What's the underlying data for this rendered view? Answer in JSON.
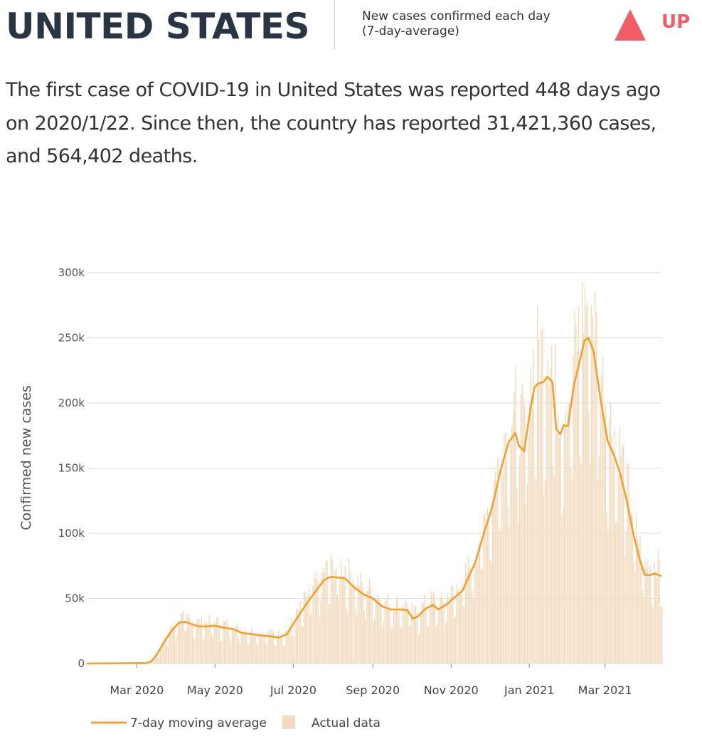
{
  "header": {
    "country": "UNITED STATES",
    "caption_line1": "New cases confirmed each day",
    "caption_line2": "(7-day-average)",
    "trend_label": "UP",
    "trend_icon": "triangle-up-icon",
    "trend_color": "#f25c66"
  },
  "summary": {
    "line1": "The first case of COVID-19 in United States was reported 448 days ago",
    "line2": "on 2020/1/22. Since then, the country has reported 31,421,360 cases,",
    "line3": "and 564,402 deaths."
  },
  "colors": {
    "average_line": "#f5a02a",
    "actual_bars": "#f2dcc0",
    "grid": "#dcdcdc"
  },
  "chart_data": {
    "type": "line",
    "ylabel": "Confirmed new cases",
    "xlabel": "",
    "ylim": [
      0,
      300000
    ],
    "yticks": [
      0,
      50000,
      100000,
      150000,
      200000,
      250000,
      300000
    ],
    "ytick_labels": [
      "0",
      "50k",
      "100k",
      "150k",
      "200k",
      "250k",
      "300k"
    ],
    "xticks": [
      "2020-03-01",
      "2020-05-01",
      "2020-07-01",
      "2020-09-01",
      "2020-11-01",
      "2021-01-01",
      "2021-03-01"
    ],
    "xtick_labels": [
      "Mar 2020",
      "May 2020",
      "Jul 2020",
      "Sep 2020",
      "Nov 2020",
      "Jan 2021",
      "Mar 2021"
    ],
    "xlim": [
      "2020-01-22",
      "2021-04-14"
    ],
    "grid": true,
    "legend_position": "bottom-left",
    "series": [
      {
        "name": "7-day moving average",
        "style": "line",
        "points": [
          [
            "2020-01-22",
            0
          ],
          [
            "2020-02-15",
            200
          ],
          [
            "2020-03-08",
            300
          ],
          [
            "2020-03-12",
            1500
          ],
          [
            "2020-03-16",
            6000
          ],
          [
            "2020-03-22",
            16000
          ],
          [
            "2020-03-28",
            25000
          ],
          [
            "2020-04-03",
            31500
          ],
          [
            "2020-04-08",
            32000
          ],
          [
            "2020-04-12",
            30500
          ],
          [
            "2020-04-18",
            28500
          ],
          [
            "2020-04-25",
            28500
          ],
          [
            "2020-05-01",
            29000
          ],
          [
            "2020-05-08",
            27500
          ],
          [
            "2020-05-15",
            26500
          ],
          [
            "2020-05-22",
            23500
          ],
          [
            "2020-05-30",
            22500
          ],
          [
            "2020-06-06",
            21500
          ],
          [
            "2020-06-12",
            21000
          ],
          [
            "2020-06-20",
            20000
          ],
          [
            "2020-06-26",
            22500
          ],
          [
            "2020-07-02",
            32000
          ],
          [
            "2020-07-10",
            44000
          ],
          [
            "2020-07-18",
            55000
          ],
          [
            "2020-07-25",
            64000
          ],
          [
            "2020-07-30",
            66500
          ],
          [
            "2020-08-05",
            66000
          ],
          [
            "2020-08-10",
            65500
          ],
          [
            "2020-08-18",
            58000
          ],
          [
            "2020-08-25",
            53000
          ],
          [
            "2020-09-01",
            50000
          ],
          [
            "2020-09-08",
            44000
          ],
          [
            "2020-09-15",
            41500
          ],
          [
            "2020-09-22",
            41500
          ],
          [
            "2020-09-28",
            41000
          ],
          [
            "2020-10-02",
            34500
          ],
          [
            "2020-10-06",
            36000
          ],
          [
            "2020-10-12",
            42000
          ],
          [
            "2020-10-18",
            45000
          ],
          [
            "2020-10-22",
            41500
          ],
          [
            "2020-10-28",
            45000
          ],
          [
            "2020-11-04",
            51000
          ],
          [
            "2020-11-10",
            56000
          ],
          [
            "2020-11-14",
            65000
          ],
          [
            "2020-11-20",
            78000
          ],
          [
            "2020-11-26",
            98000
          ],
          [
            "2020-12-03",
            120000
          ],
          [
            "2020-12-10",
            150000
          ],
          [
            "2020-12-16",
            170000
          ],
          [
            "2020-12-21",
            177000
          ],
          [
            "2020-12-24",
            167000
          ],
          [
            "2020-12-28",
            163000
          ],
          [
            "2021-01-01",
            190000
          ],
          [
            "2021-01-05",
            212000
          ],
          [
            "2021-01-08",
            215000
          ],
          [
            "2021-01-12",
            216000
          ],
          [
            "2021-01-15",
            220000
          ],
          [
            "2021-01-19",
            216000
          ],
          [
            "2021-01-22",
            180000
          ],
          [
            "2021-01-25",
            176000
          ],
          [
            "2021-01-28",
            183000
          ],
          [
            "2021-01-31",
            182000
          ],
          [
            "2021-02-05",
            215000
          ],
          [
            "2021-02-10",
            235000
          ],
          [
            "2021-02-13",
            248000
          ],
          [
            "2021-02-16",
            250000
          ],
          [
            "2021-02-20",
            240000
          ],
          [
            "2021-02-26",
            200000
          ],
          [
            "2021-03-03",
            171000
          ],
          [
            "2021-03-08",
            160000
          ],
          [
            "2021-03-13",
            145000
          ],
          [
            "2021-03-18",
            125000
          ],
          [
            "2021-03-23",
            100000
          ],
          [
            "2021-03-28",
            80000
          ],
          [
            "2021-04-01",
            68000
          ],
          [
            "2021-04-05",
            68000
          ],
          [
            "2021-04-09",
            69000
          ],
          [
            "2021-04-14",
            67000
          ]
        ]
      },
      {
        "name": "Actual data",
        "style": "bar"
      }
    ]
  }
}
